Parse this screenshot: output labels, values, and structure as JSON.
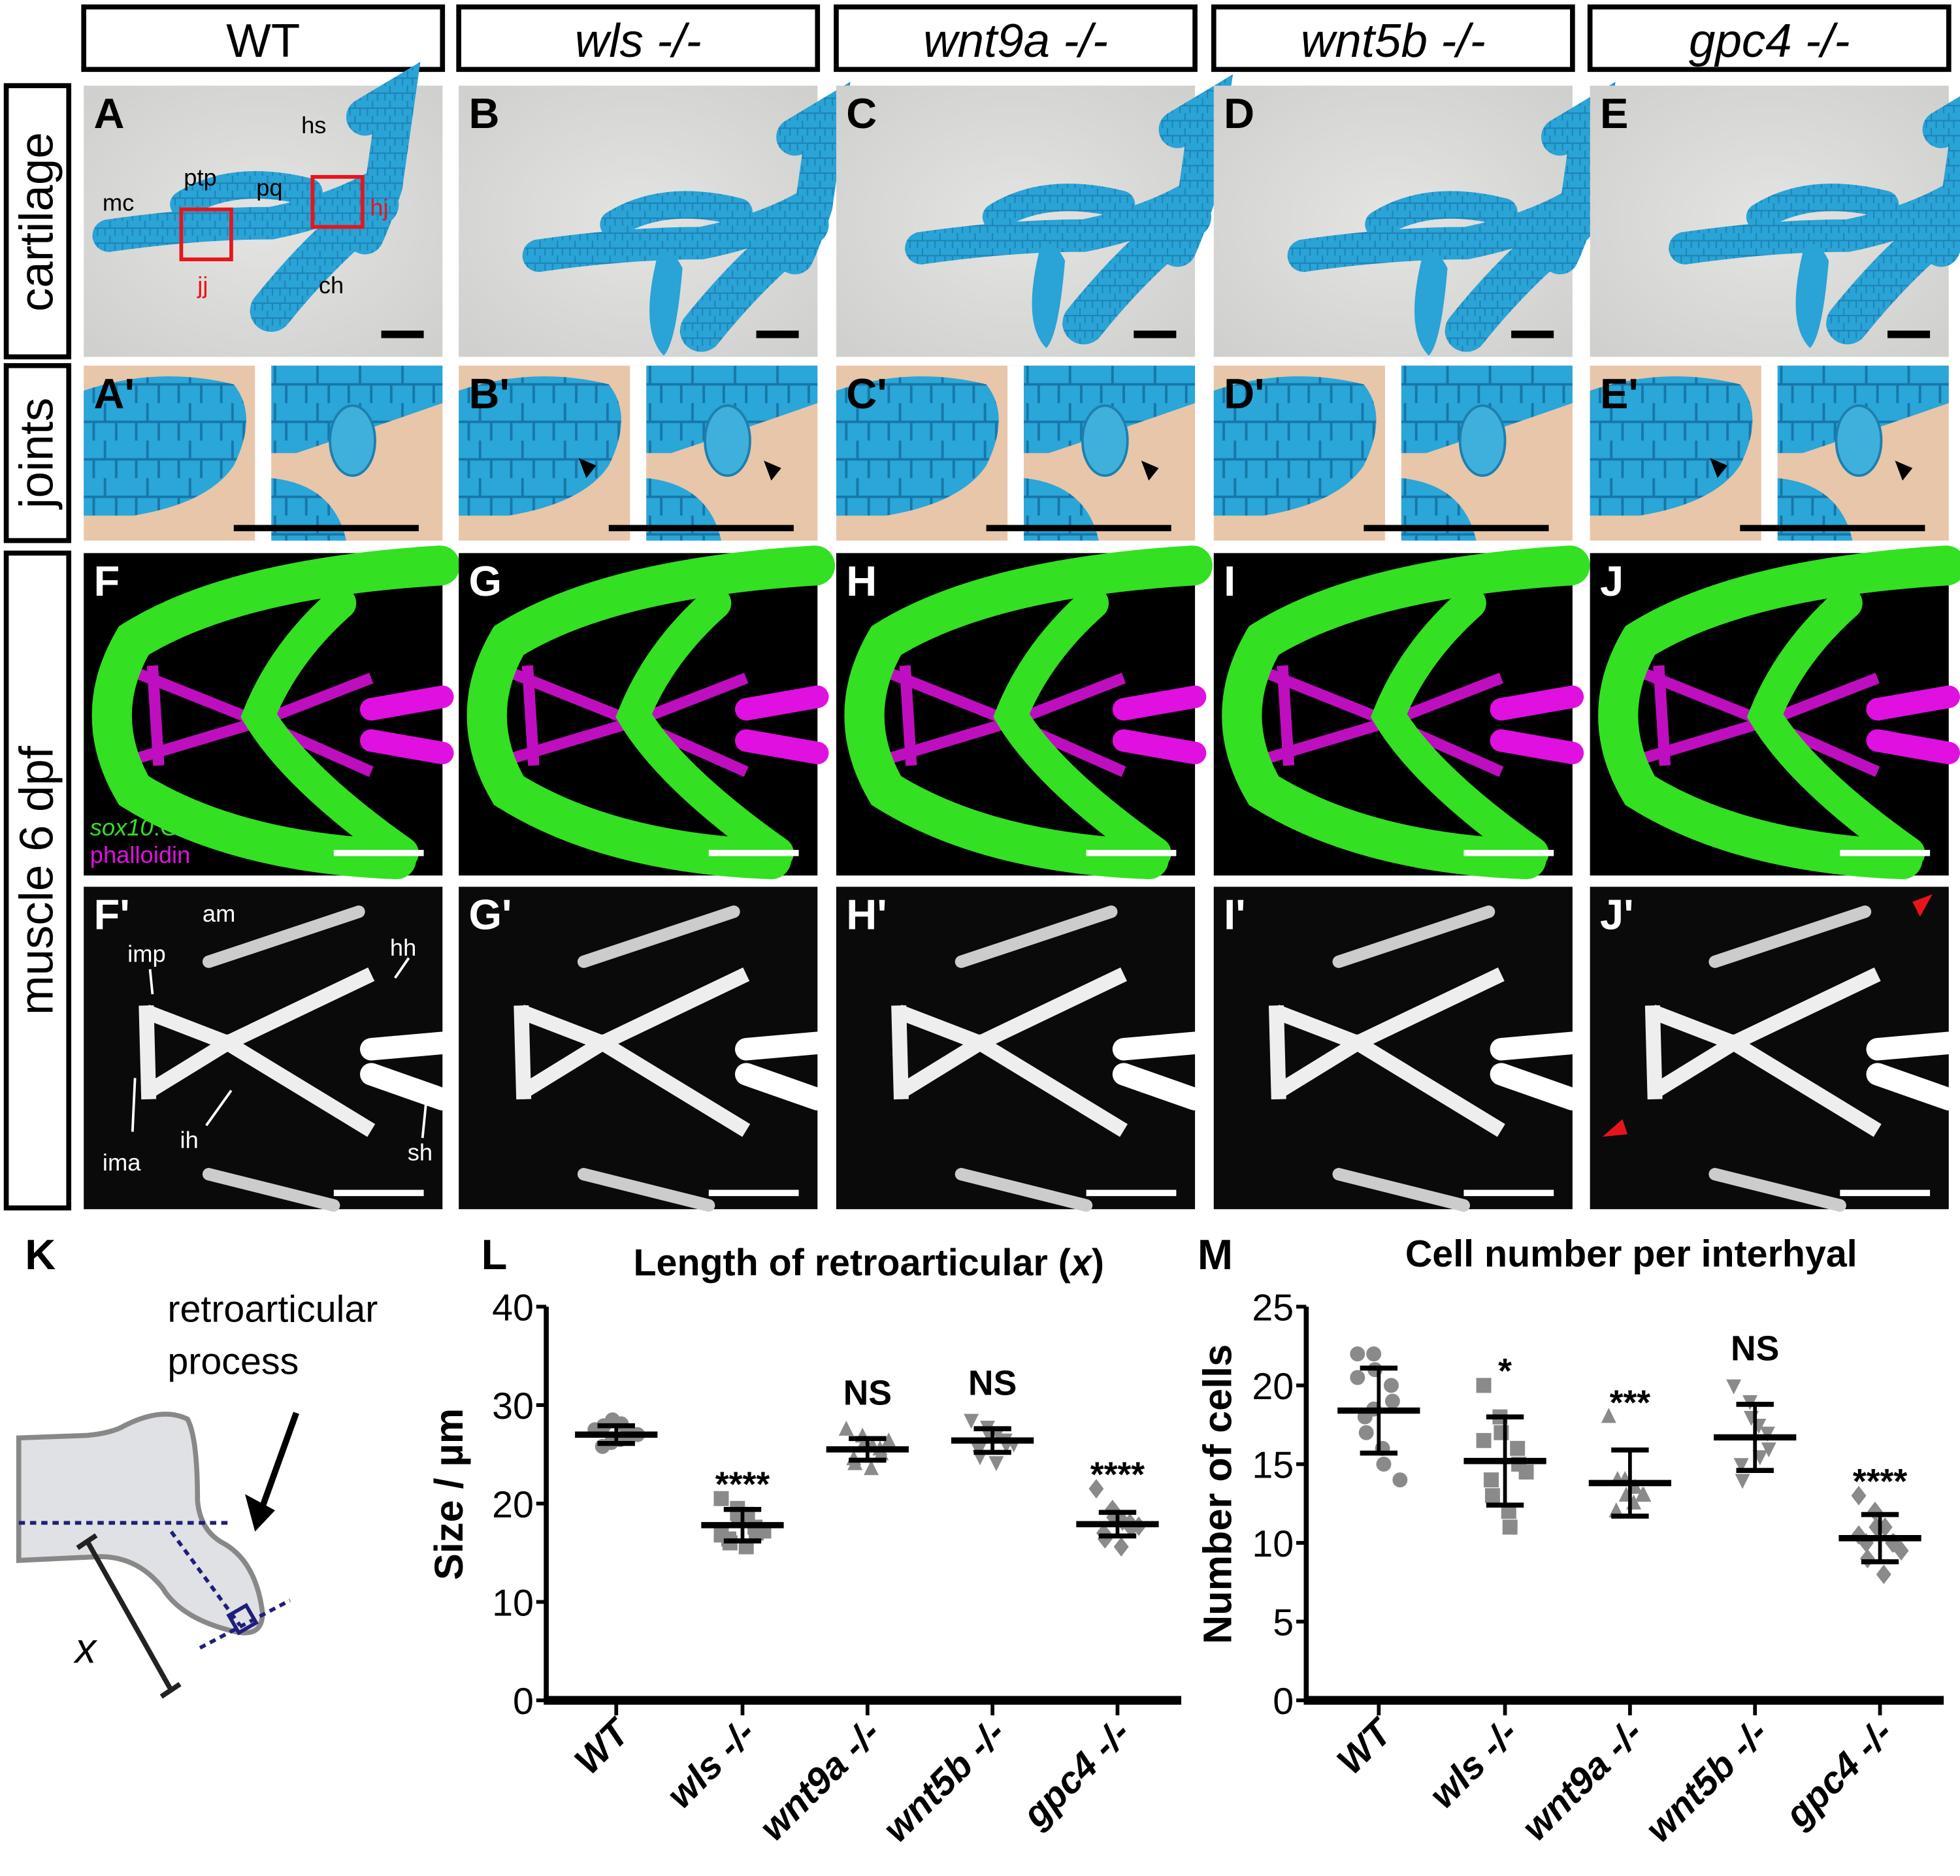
{
  "column_headers": [
    {
      "label": "WT",
      "italic": false
    },
    {
      "label": "wls -/-",
      "italic": true
    },
    {
      "label": "wnt9a -/-",
      "italic": true
    },
    {
      "label": "wnt5b -/-",
      "italic": true
    },
    {
      "label": "gpc4 -/-",
      "italic": true
    }
  ],
  "row_labels": {
    "cartilage": "cartilage",
    "joints": "joints",
    "muscle": "muscle 6 dpf"
  },
  "panel_letters": {
    "cartilage": [
      "A",
      "B",
      "C",
      "D",
      "E"
    ],
    "joints": [
      "A'",
      "B'",
      "C'",
      "D'",
      "E'"
    ],
    "fluor": [
      "F",
      "G",
      "H",
      "I",
      "J"
    ],
    "gray": [
      "F'",
      "G'",
      "H'",
      "I'",
      "J'"
    ]
  },
  "annotations_A": {
    "mc": "mc",
    "ptp": "ptp",
    "pq": "pq",
    "hs": "hs",
    "hj": "hj",
    "jj": "jj",
    "ch": "ch"
  },
  "annotations_F": {
    "sox10": "sox10",
    "gfp": ":GFP",
    "phalloidin": "phalloidin"
  },
  "annotations_Fp": {
    "am": "am",
    "imp": "imp",
    "hh": "hh",
    "ima": "ima",
    "ih": "ih",
    "sh": "sh"
  },
  "colors": {
    "cartilage_blue": "#2aa3d6",
    "joint_bg": "#e8c6aa",
    "gfp": "#33e022",
    "phalloidin": "#e010e0",
    "box_red": "#e8141c",
    "diagram_navy": "#1f1f7a"
  },
  "panel_K": {
    "letter": "K",
    "label1": "retroarticular",
    "label2": "process",
    "var": "x"
  },
  "chart_data": [
    {
      "type": "scatter",
      "panel": "L",
      "title_prefix": "Length of retroarticular (",
      "title_var": "x",
      "title_suffix": ")",
      "ylabel": "Size / µm",
      "ylim": [
        0,
        40
      ],
      "yticks": [
        0,
        10,
        20,
        30,
        40
      ],
      "categories": [
        "WT",
        "wls -/-",
        "wnt9a -/-",
        "wnt5b -/-",
        "gpc4 -/-"
      ],
      "markers": [
        "circle",
        "square",
        "triangle-up",
        "triangle-down",
        "diamond"
      ],
      "mean": [
        27.0,
        17.8,
        25.5,
        26.4,
        17.9
      ],
      "sd": [
        0.9,
        1.6,
        1.1,
        1.2,
        1.2
      ],
      "significance": [
        "",
        "****",
        "NS",
        "NS",
        "****"
      ],
      "points": [
        [
          27.5,
          26.2,
          28.5,
          27.1,
          26.8,
          25.8,
          27.9,
          26.5,
          28.1,
          27.0
        ],
        [
          20.5,
          19.5,
          18.4,
          17.6,
          17.0,
          16.4,
          16.0,
          15.6,
          18.9,
          17.2,
          16.8,
          19.0
        ],
        [
          27.5,
          26.8,
          26.0,
          25.5,
          25.0,
          24.5,
          24.0,
          23.5,
          25.8,
          26.3
        ],
        [
          28.5,
          27.8,
          27.0,
          26.5,
          26.0,
          25.5,
          24.8,
          24.2,
          27.2,
          26.1
        ],
        [
          21.5,
          19.4,
          18.6,
          18.0,
          17.5,
          17.0,
          16.4,
          15.6,
          18.2,
          17.7
        ]
      ]
    },
    {
      "type": "scatter",
      "panel": "M",
      "title": "Cell number per interhyal",
      "ylabel": "Number of cells",
      "ylim": [
        0,
        25
      ],
      "yticks": [
        0,
        5,
        10,
        15,
        20,
        25
      ],
      "categories": [
        "WT",
        "wls -/-",
        "wnt9a -/-",
        "wnt5b -/-",
        "gpc4 -/-"
      ],
      "markers": [
        "circle",
        "square",
        "triangle-up",
        "triangle-down",
        "diamond"
      ],
      "mean": [
        18.4,
        15.2,
        13.8,
        16.7,
        10.3
      ],
      "sd": [
        2.7,
        2.8,
        2.1,
        2.1,
        1.5
      ],
      "significance": [
        "",
        "*",
        "***",
        "NS",
        "****"
      ],
      "points": [
        [
          22,
          22,
          21,
          20,
          19,
          18,
          17,
          16,
          15,
          14,
          20.5,
          18.5
        ],
        [
          20,
          18,
          17,
          16,
          15,
          14,
          13,
          12,
          11,
          14.5,
          16.5
        ],
        [
          18,
          14,
          13,
          13,
          13,
          12,
          14,
          12.5,
          13.5
        ],
        [
          20,
          19,
          18,
          17,
          16,
          15,
          14,
          17.5,
          15.5
        ],
        [
          13,
          12,
          11,
          10,
          10,
          10,
          9,
          8,
          11,
          9.5,
          10.5
        ]
      ]
    }
  ]
}
